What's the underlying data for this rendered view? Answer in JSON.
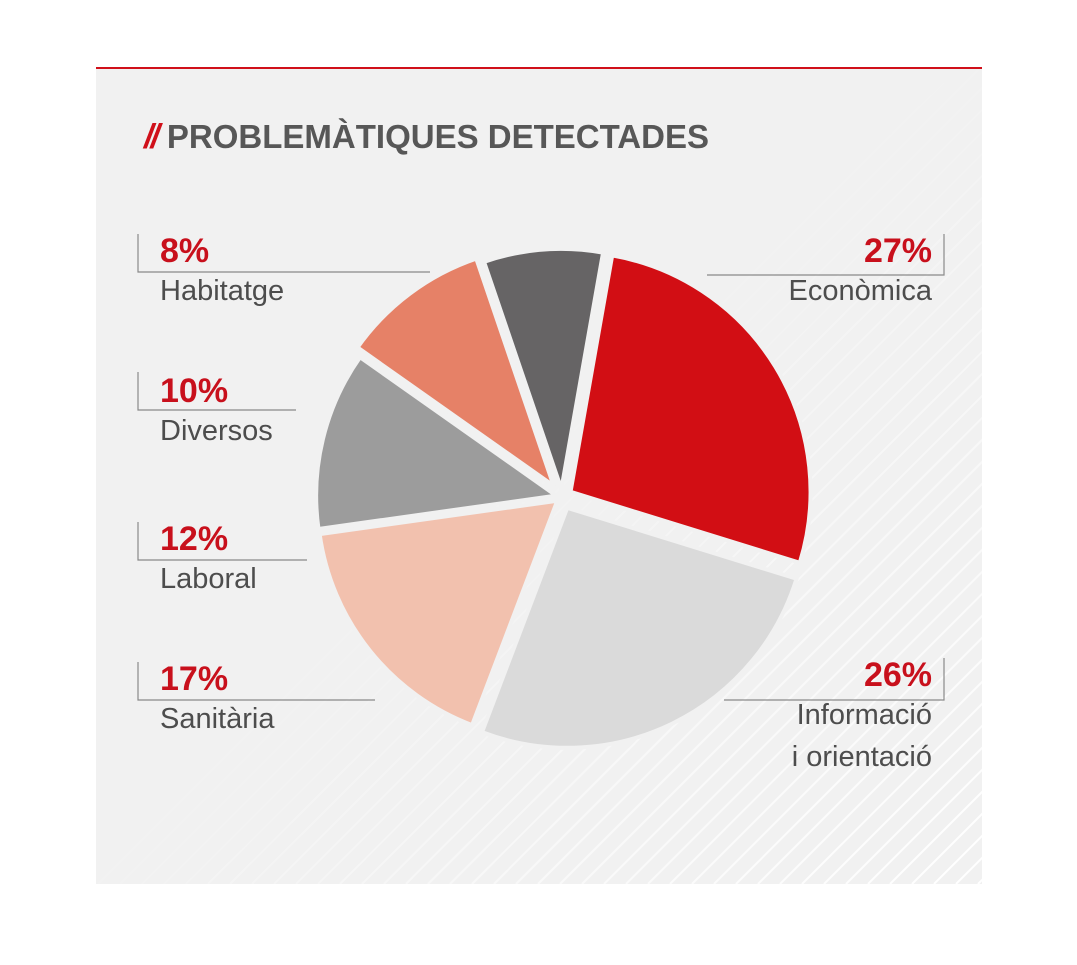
{
  "title": {
    "mark": "//",
    "text": "PROBLEMÀTIQUES DETECTADES"
  },
  "colors": {
    "accent": "#d0101a",
    "panel": "#f1f1f1"
  },
  "chart_data": {
    "type": "pie",
    "title": "PROBLEMÀTIQUES DETECTADES",
    "slices": [
      {
        "label": "Econòmica",
        "value": 27,
        "display": "27%",
        "color": "#d20e14"
      },
      {
        "label": "Informació i orientació",
        "label_lines": [
          "Informació",
          "i orientació"
        ],
        "value": 26,
        "display": "26%",
        "color": "#dadada"
      },
      {
        "label": "Sanitària",
        "value": 17,
        "display": "17%",
        "color": "#f2c1ae"
      },
      {
        "label": "Laboral",
        "value": 12,
        "display": "12%",
        "color": "#9c9c9c"
      },
      {
        "label": "Diversos",
        "value": 10,
        "display": "10%",
        "color": "#e68167"
      },
      {
        "label": "Habitatge",
        "value": 8,
        "display": "8%",
        "color": "#666465"
      }
    ]
  }
}
